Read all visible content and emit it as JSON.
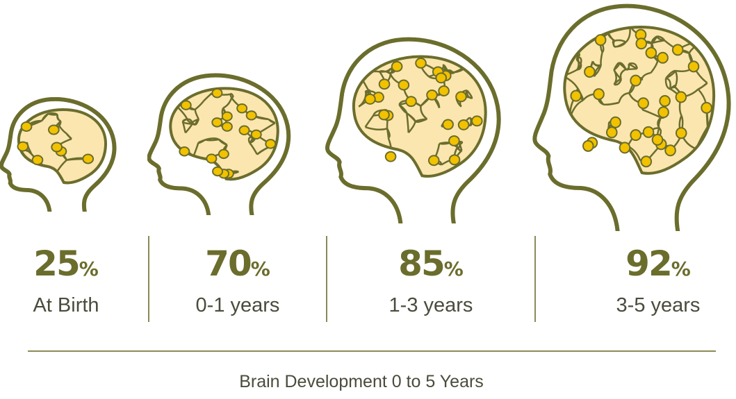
{
  "colors": {
    "outline": "#6b6d2c",
    "brain_fill": "#fbe6b0",
    "node": "#f2c200",
    "text": "#4b4b3c"
  },
  "stages": [
    {
      "value": "25",
      "unit": "%",
      "label": "At Birth"
    },
    {
      "value": "70",
      "unit": "%",
      "label": "0-1 years"
    },
    {
      "value": "85",
      "unit": "%",
      "label": "1-3 years"
    },
    {
      "value": "92",
      "unit": "%",
      "label": "3-5 years"
    }
  ],
  "title": "Brain Development 0 to 5 Years"
}
